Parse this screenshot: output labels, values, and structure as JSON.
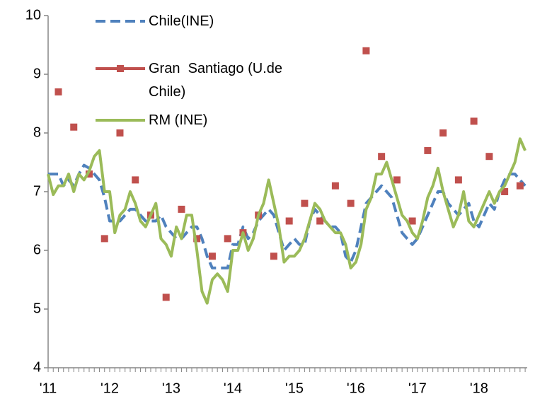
{
  "chart_data": {
    "type": "line",
    "categories": [
      "'11",
      null,
      null,
      null,
      null,
      null,
      null,
      null,
      null,
      null,
      null,
      null,
      "'12",
      null,
      null,
      null,
      null,
      null,
      null,
      null,
      null,
      null,
      null,
      null,
      "'13",
      null,
      null,
      null,
      null,
      null,
      null,
      null,
      null,
      null,
      null,
      null,
      "'14",
      null,
      null,
      null,
      null,
      null,
      null,
      null,
      null,
      null,
      null,
      null,
      "'15",
      null,
      null,
      null,
      null,
      null,
      null,
      null,
      null,
      null,
      null,
      null,
      "'16",
      null,
      null,
      null,
      null,
      null,
      null,
      null,
      null,
      null,
      null,
      null,
      "'17",
      null,
      null,
      null,
      null,
      null,
      null,
      null,
      null,
      null,
      null,
      null,
      "'18",
      null,
      null,
      null,
      null,
      null,
      null,
      null,
      null,
      null
    ],
    "series": [
      {
        "name": "Chile(INE)",
        "color": "#4f81bd",
        "dash": true,
        "markers": false,
        "line": true,
        "values": [
          7.3,
          7.3,
          7.3,
          7.1,
          7.2,
          7.1,
          7.3,
          7.45,
          7.4,
          7.3,
          7.2,
          6.9,
          6.5,
          6.5,
          6.5,
          6.6,
          6.7,
          6.7,
          6.6,
          6.5,
          6.5,
          6.5,
          6.6,
          6.4,
          6.3,
          6.2,
          6.2,
          6.3,
          6.4,
          6.4,
          6.2,
          5.9,
          5.7,
          5.7,
          5.7,
          5.7,
          6.1,
          6.1,
          6.4,
          6.2,
          6.3,
          6.5,
          6.6,
          6.7,
          6.6,
          6.3,
          6.0,
          6.1,
          6.2,
          6.1,
          6.1,
          6.5,
          6.7,
          6.6,
          6.5,
          6.4,
          6.4,
          6.3,
          5.9,
          5.8,
          6.0,
          6.4,
          6.8,
          6.9,
          7.0,
          7.1,
          7.0,
          6.9,
          6.6,
          6.3,
          6.2,
          6.1,
          6.2,
          6.4,
          6.6,
          6.8,
          7.0,
          7.0,
          6.8,
          6.7,
          6.6,
          6.7,
          6.8,
          6.5,
          6.4,
          6.6,
          6.8,
          6.7,
          7.0,
          7.2,
          7.3,
          7.3,
          7.2,
          7.1
        ]
      },
      {
        "name": "Gran  Santiago (U.de Chile)",
        "color": "#c0504d",
        "dash": false,
        "markers": true,
        "line": false,
        "values": [
          null,
          null,
          8.7,
          null,
          null,
          8.1,
          null,
          null,
          7.3,
          null,
          null,
          6.2,
          null,
          null,
          8.0,
          null,
          null,
          7.2,
          null,
          null,
          6.6,
          null,
          null,
          5.2,
          null,
          null,
          6.7,
          null,
          null,
          6.2,
          null,
          null,
          5.9,
          null,
          null,
          6.2,
          null,
          null,
          6.3,
          null,
          null,
          6.6,
          null,
          null,
          5.9,
          null,
          null,
          6.5,
          null,
          null,
          6.8,
          null,
          null,
          6.5,
          null,
          null,
          7.1,
          null,
          null,
          6.8,
          null,
          null,
          9.4,
          null,
          null,
          7.6,
          null,
          null,
          7.2,
          null,
          null,
          6.5,
          null,
          null,
          7.7,
          null,
          null,
          8.0,
          null,
          null,
          7.2,
          null,
          null,
          8.2,
          null,
          null,
          7.6,
          null,
          null,
          7.0,
          null,
          null,
          7.1,
          null
        ]
      },
      {
        "name": "RM (INE)",
        "color": "#9bbb59",
        "dash": false,
        "markers": false,
        "line": true,
        "values": [
          7.3,
          6.95,
          7.1,
          7.1,
          7.3,
          7.0,
          7.3,
          7.2,
          7.35,
          7.6,
          7.7,
          7.0,
          7.0,
          6.3,
          6.6,
          6.7,
          7.0,
          6.8,
          6.5,
          6.4,
          6.6,
          6.8,
          6.2,
          6.1,
          5.9,
          6.4,
          6.2,
          6.6,
          6.6,
          6.0,
          5.3,
          5.1,
          5.5,
          5.6,
          5.5,
          5.3,
          6.0,
          6.0,
          6.3,
          6.0,
          6.2,
          6.6,
          6.8,
          7.2,
          6.8,
          6.4,
          5.8,
          5.9,
          5.9,
          6.0,
          6.2,
          6.5,
          6.8,
          6.7,
          6.5,
          6.4,
          6.3,
          6.3,
          6.1,
          5.7,
          5.8,
          6.1,
          6.7,
          6.9,
          7.3,
          7.3,
          7.5,
          7.2,
          6.9,
          6.6,
          6.5,
          6.3,
          6.2,
          6.5,
          6.9,
          7.1,
          7.4,
          7.0,
          6.7,
          6.4,
          6.6,
          7.0,
          6.5,
          6.4,
          6.6,
          6.8,
          7.0,
          6.8,
          7.0,
          7.1,
          7.3,
          7.5,
          7.9,
          7.7
        ]
      }
    ],
    "ylim": [
      4,
      10
    ],
    "yticks": [
      4,
      5,
      6,
      7,
      8,
      9,
      10
    ],
    "grid": false
  }
}
